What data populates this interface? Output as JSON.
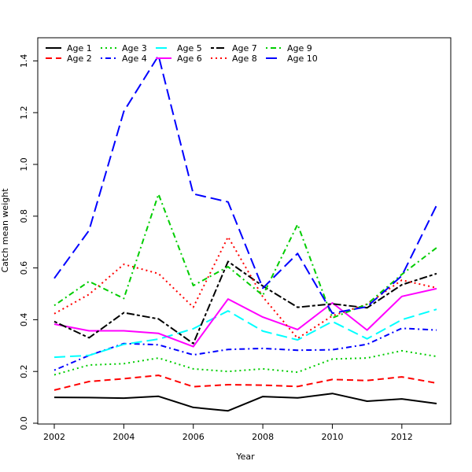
{
  "chart_data": {
    "type": "line",
    "title": "",
    "xlabel": "Year",
    "ylabel": "Catch mean weight",
    "x": [
      2002,
      2003,
      2004,
      2005,
      2006,
      2007,
      2008,
      2009,
      2010,
      2011,
      2012,
      2013
    ],
    "xlim": [
      2002,
      2013
    ],
    "ylim": [
      0,
      1.45
    ],
    "x_ticks": [
      "2002",
      "2004",
      "2006",
      "2008",
      "2010",
      "2012"
    ],
    "y_ticks": [
      "0.0",
      "0.2",
      "0.4",
      "0.6",
      "0.8",
      "1.0",
      "1.2",
      "1.4"
    ],
    "grid": false,
    "legend_position": "top-left",
    "series": [
      {
        "name": "Age 1",
        "color": "#000000",
        "dash": "solid",
        "values": [
          0.1,
          0.099,
          0.097,
          0.104,
          0.061,
          0.048,
          0.103,
          0.098,
          0.115,
          0.085,
          0.094,
          0.076
        ]
      },
      {
        "name": "Age 2",
        "color": "#ff0000",
        "dash": "dashed",
        "values": [
          0.128,
          0.161,
          0.172,
          0.185,
          0.141,
          0.149,
          0.147,
          0.142,
          0.169,
          0.165,
          0.179,
          0.155
        ]
      },
      {
        "name": "Age 3",
        "color": "#00cd00",
        "dash": "dotted",
        "values": [
          0.187,
          0.225,
          0.23,
          0.252,
          0.21,
          0.2,
          0.21,
          0.197,
          0.248,
          0.252,
          0.28,
          0.258
        ]
      },
      {
        "name": "Age 4",
        "color": "#0000ff",
        "dash": "dotdash",
        "values": [
          0.205,
          0.262,
          0.308,
          0.303,
          0.264,
          0.285,
          0.289,
          0.282,
          0.284,
          0.305,
          0.367,
          0.36
        ]
      },
      {
        "name": "Age 5",
        "color": "#00ffff",
        "dash": "longdash",
        "values": [
          0.255,
          0.262,
          0.305,
          0.325,
          0.365,
          0.434,
          0.356,
          0.322,
          0.393,
          0.326,
          0.4,
          0.44
        ]
      },
      {
        "name": "Age 6",
        "color": "#ff00ff",
        "dash": "solid",
        "values": [
          0.383,
          0.357,
          0.357,
          0.347,
          0.296,
          0.48,
          0.41,
          0.362,
          0.465,
          0.36,
          0.49,
          0.52
        ]
      },
      {
        "name": "Age 7",
        "color": "#000000",
        "dash": "twodash",
        "values": [
          0.393,
          0.33,
          0.427,
          0.403,
          0.308,
          0.625,
          0.53,
          0.448,
          0.461,
          0.446,
          0.535,
          0.578
        ]
      },
      {
        "name": "Age 8",
        "color": "#ff0000",
        "dash": "dotted2",
        "values": [
          0.423,
          0.498,
          0.614,
          0.578,
          0.448,
          0.72,
          0.488,
          0.328,
          0.415,
          0.46,
          0.553,
          0.523
        ]
      },
      {
        "name": "Age 9",
        "color": "#00cd00",
        "dash": "dotdash",
        "values": [
          0.455,
          0.548,
          0.482,
          0.885,
          0.532,
          0.605,
          0.494,
          0.768,
          0.407,
          0.46,
          0.575,
          0.678
        ]
      },
      {
        "name": "Age 10",
        "color": "#0000ff",
        "dash": "longdash",
        "values": [
          0.56,
          0.745,
          1.205,
          1.42,
          0.886,
          0.855,
          0.522,
          0.656,
          0.425,
          0.45,
          0.57,
          0.842
        ]
      }
    ]
  }
}
